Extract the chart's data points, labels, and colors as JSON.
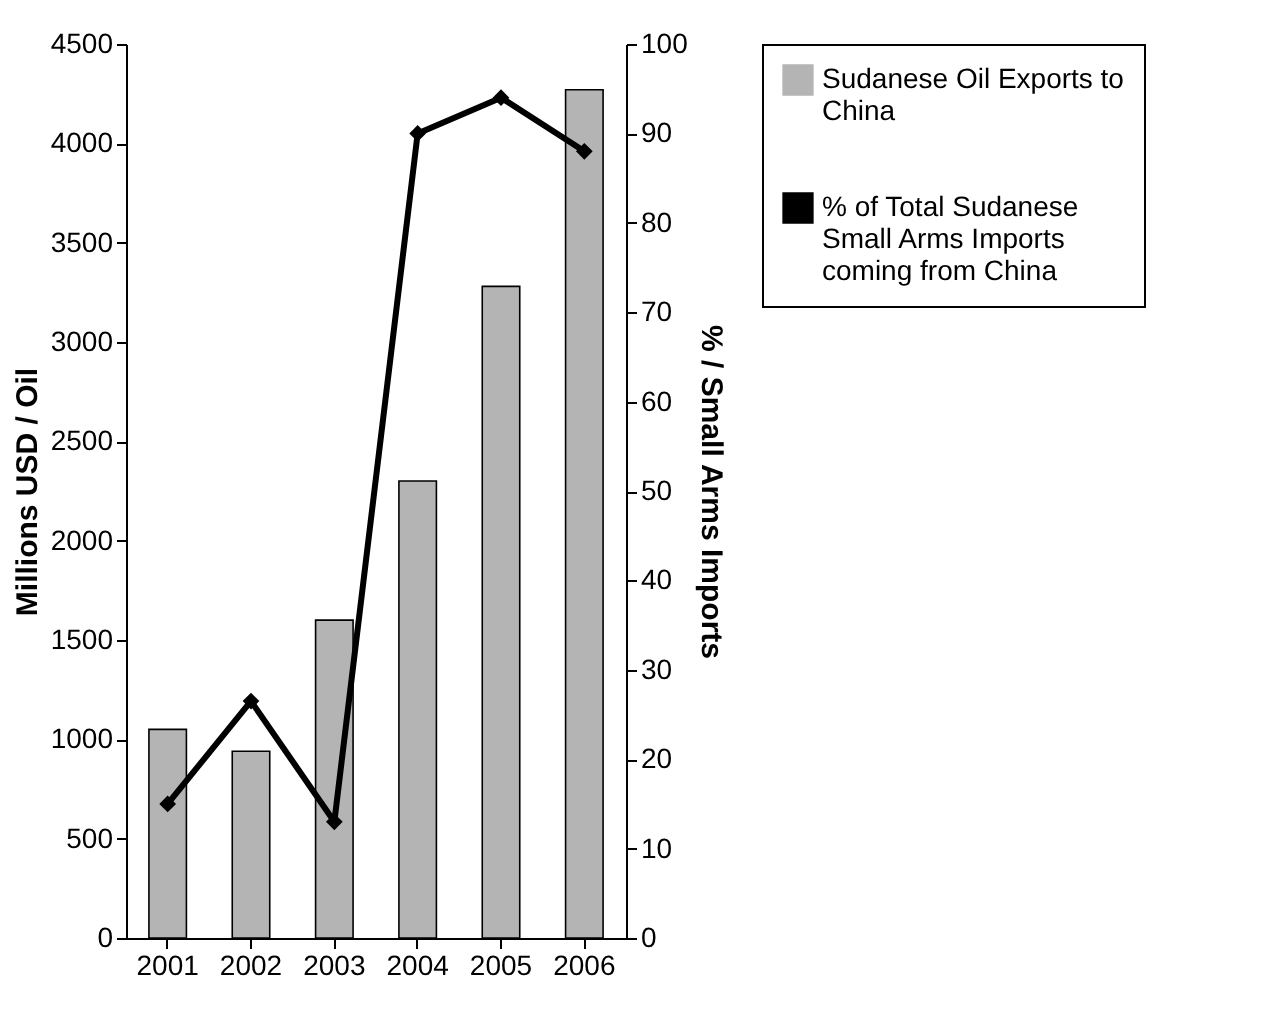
{
  "chart_data": {
    "type": "bar",
    "categories": [
      "2001",
      "2002",
      "2003",
      "2004",
      "2005",
      "2006"
    ],
    "ylabel": "Millions USD / Oil",
    "y2label": "% / Small Arms Imports",
    "ylim": [
      0,
      4500
    ],
    "yticks": [
      0,
      500,
      1000,
      1500,
      2000,
      2500,
      3000,
      3500,
      4000,
      4500
    ],
    "y2lim": [
      0,
      100
    ],
    "y2ticks": [
      0,
      10,
      20,
      30,
      40,
      50,
      60,
      70,
      80,
      90,
      100
    ],
    "legend": "right",
    "grid": false,
    "marker": "diamond",
    "line_style": "solid",
    "series": [
      {
        "name": "Sudanese Oil Exports to China",
        "color": "#b4b4b4",
        "values": [
          1050,
          940,
          1600,
          2300,
          3280,
          4270
        ]
      },
      {
        "name": "% of Total Sudanese Small Arms Imports coming from China",
        "type": "line",
        "axis": "y2",
        "color": "#000000",
        "values": [
          15,
          26.5,
          13,
          90,
          94,
          88
        ]
      }
    ]
  }
}
